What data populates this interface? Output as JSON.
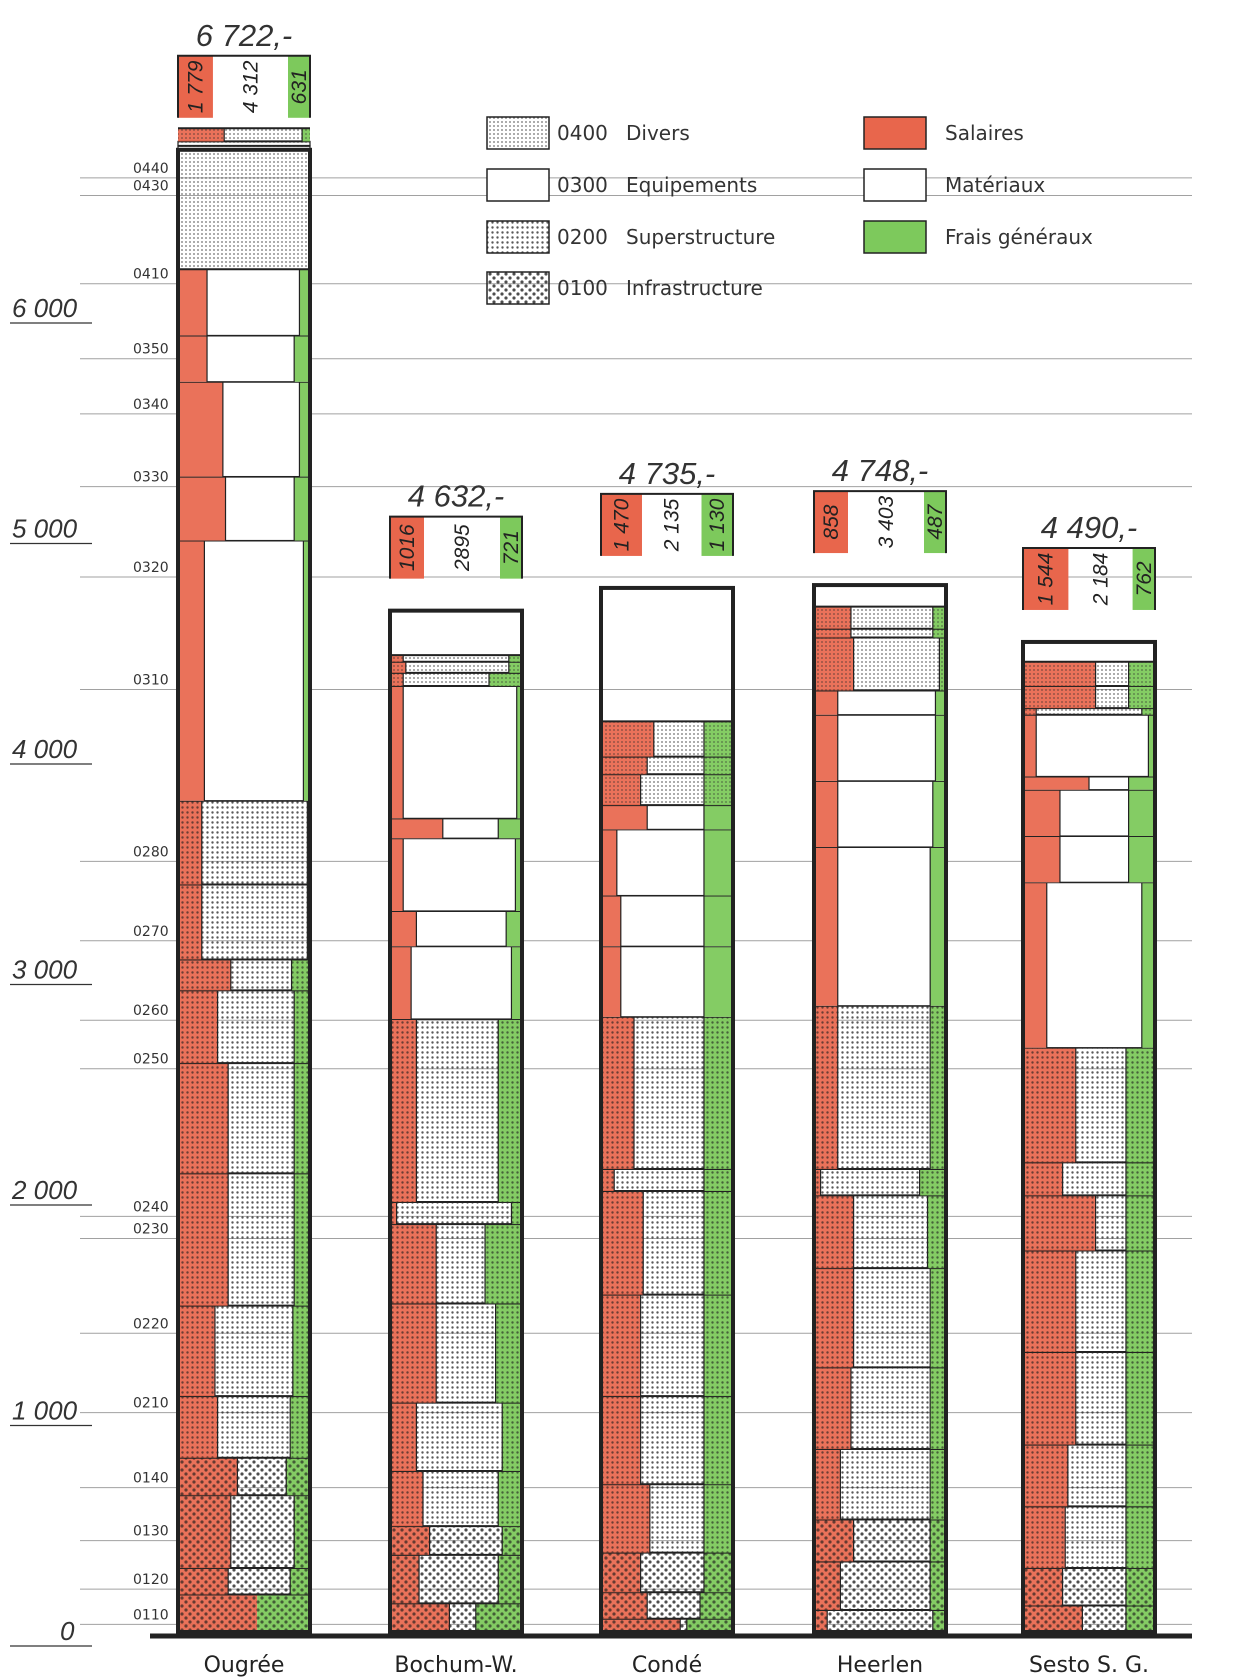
{
  "colors": {
    "salaires": "#e8664c",
    "materiaux": "#ffffff",
    "frais_generaux": "#7dc95c",
    "ink": "#222222"
  },
  "legend": {
    "categories": [
      {
        "code": "0400",
        "label": "Divers",
        "pattern": "dots-fine"
      },
      {
        "code": "0300",
        "label": "Equipements",
        "pattern": "none"
      },
      {
        "code": "0200",
        "label": "Superstructure",
        "pattern": "dots-medium"
      },
      {
        "code": "0100",
        "label": "Infrastructure",
        "pattern": "dots-coarse"
      }
    ],
    "components": [
      {
        "label": "Salaires",
        "color_key": "salaires"
      },
      {
        "label": "Matériaux",
        "color_key": "materiaux"
      },
      {
        "label": "Frais généraux",
        "color_key": "frais_generaux"
      }
    ]
  },
  "chart_data": {
    "type": "bar",
    "stacked": true,
    "ylim": [
      0,
      6722
    ],
    "y_ticks": [
      {
        "value": 0,
        "label": "0"
      },
      {
        "value": 1000,
        "label": "1 000"
      },
      {
        "value": 2000,
        "label": "2 000"
      },
      {
        "value": 3000,
        "label": "3 000"
      },
      {
        "value": 4000,
        "label": "4 000"
      },
      {
        "value": 5000,
        "label": "5 000"
      },
      {
        "value": 6000,
        "label": "6 000"
      }
    ],
    "code_labels": [
      {
        "code": "0110",
        "value": 80
      },
      {
        "code": "0120",
        "value": 240
      },
      {
        "code": "0130",
        "value": 460
      },
      {
        "code": "0140",
        "value": 700
      },
      {
        "code": "0210",
        "value": 1040
      },
      {
        "code": "0220",
        "value": 1400
      },
      {
        "code": "0230",
        "value": 1830
      },
      {
        "code": "0240",
        "value": 1930
      },
      {
        "code": "0250",
        "value": 2600
      },
      {
        "code": "0260",
        "value": 2820
      },
      {
        "code": "0270",
        "value": 3180
      },
      {
        "code": "0280",
        "value": 3540
      },
      {
        "code": "0310",
        "value": 4320
      },
      {
        "code": "0320",
        "value": 4830
      },
      {
        "code": "0330",
        "value": 5240
      },
      {
        "code": "0340",
        "value": 5570
      },
      {
        "code": "0350",
        "value": 5820
      },
      {
        "code": "0410",
        "value": 6160
      },
      {
        "code": "0430",
        "value": 6560
      },
      {
        "code": "0440",
        "value": 6640
      }
    ],
    "series_names": [
      "Salaires",
      "Matériaux",
      "Frais généraux"
    ],
    "bars": [
      {
        "name": "Ougrée",
        "total": 6722,
        "total_label": "6 722,-",
        "split": [
          1779,
          4312,
          631
        ],
        "split_labels": [
          "1 779",
          "4 312",
          "631"
        ],
        "segments": [
          {
            "code": "0110",
            "cat": "0100",
            "height": 170,
            "s": 0.6,
            "f": 0.4
          },
          {
            "code": "0120",
            "cat": "0100",
            "height": 120,
            "s": 0.38,
            "f": 0.15
          },
          {
            "code": "0130",
            "cat": "0100",
            "height": 330,
            "s": 0.4,
            "f": 0.12
          },
          {
            "code": "0140",
            "cat": "0100",
            "height": 170,
            "s": 0.45,
            "f": 0.18
          },
          {
            "code": "0210",
            "cat": "0200",
            "height": 280,
            "s": 0.3,
            "f": 0.15
          },
          {
            "code": "0220",
            "cat": "0200",
            "height": 410,
            "s": 0.28,
            "f": 0.13
          },
          {
            "code": "0230",
            "cat": "0200",
            "height": 600,
            "s": 0.38,
            "f": 0.12
          },
          {
            "code": "0240",
            "cat": "0200",
            "height": 500,
            "s": 0.38,
            "f": 0.12
          },
          {
            "code": "0250",
            "cat": "0200",
            "height": 330,
            "s": 0.3,
            "f": 0.12
          },
          {
            "code": "0260",
            "cat": "0200",
            "height": 140,
            "s": 0.4,
            "f": 0.14
          },
          {
            "code": "0270",
            "cat": "0200",
            "height": 340,
            "s": 0.18,
            "f": 0.02
          },
          {
            "code": "0280",
            "cat": "0200",
            "height": 380,
            "s": 0.18,
            "f": 0.02
          },
          {
            "code": "0310",
            "cat": "0300",
            "height": 1180,
            "s": 0.2,
            "f": 0.05
          },
          {
            "code": "0320",
            "cat": "0300",
            "height": 290,
            "s": 0.36,
            "f": 0.12
          },
          {
            "code": "0330",
            "cat": "0300",
            "height": 430,
            "s": 0.34,
            "f": 0.08
          },
          {
            "code": "0340",
            "cat": "0300",
            "height": 210,
            "s": 0.22,
            "f": 0.12
          },
          {
            "code": "0350",
            "cat": "0300",
            "height": 300,
            "s": 0.22,
            "f": 0.08
          },
          {
            "code": "0410",
            "cat": "0400",
            "height": 560,
            "s": 0.0,
            "f": 0.0
          },
          {
            "code": "0430",
            "cat": "0400",
            "height": 20,
            "s": 0.0,
            "f": 0.0
          },
          {
            "code": "0440",
            "cat": "0400",
            "height": 60,
            "s": 0.35,
            "f": 0.06
          }
        ]
      },
      {
        "name": "Bochum-W.",
        "total": 4632,
        "total_label": "4 632,-",
        "split": [
          1016,
          2895,
          721
        ],
        "split_labels": [
          "1016",
          "2895",
          "721"
        ],
        "segments": [
          {
            "code": "0110",
            "cat": "0100",
            "height": 130,
            "s": 0.45,
            "f": 0.35
          },
          {
            "code": "0120",
            "cat": "0100",
            "height": 220,
            "s": 0.22,
            "f": 0.18
          },
          {
            "code": "0130",
            "cat": "0100",
            "height": 130,
            "s": 0.3,
            "f": 0.15
          },
          {
            "code": "0140",
            "cat": "0200",
            "height": 250,
            "s": 0.25,
            "f": 0.18
          },
          {
            "code": "0210",
            "cat": "0200",
            "height": 310,
            "s": 0.2,
            "f": 0.15
          },
          {
            "code": "0220",
            "cat": "0200",
            "height": 450,
            "s": 0.35,
            "f": 0.2
          },
          {
            "code": "0230",
            "cat": "0200",
            "height": 360,
            "s": 0.35,
            "f": 0.28
          },
          {
            "code": "0240",
            "cat": "0200",
            "height": 100,
            "s": 0.05,
            "f": 0.08
          },
          {
            "code": "0250",
            "cat": "0200",
            "height": 830,
            "s": 0.2,
            "f": 0.18
          },
          {
            "code": "0310",
            "cat": "0300",
            "height": 330,
            "s": 0.16,
            "f": 0.08
          },
          {
            "code": "0320",
            "cat": "0300",
            "height": 160,
            "s": 0.2,
            "f": 0.12
          },
          {
            "code": "0330",
            "cat": "0300",
            "height": 330,
            "s": 0.1,
            "f": 0.05
          },
          {
            "code": "0340",
            "cat": "0300",
            "height": 90,
            "s": 0.4,
            "f": 0.18
          },
          {
            "code": "0350",
            "cat": "0300",
            "height": 600,
            "s": 0.1,
            "f": 0.04
          },
          {
            "code": "0410",
            "cat": "0400",
            "height": 60,
            "s": 0.1,
            "f": 0.25
          },
          {
            "code": "0430",
            "cat": "0400",
            "height": 50,
            "s": 0.12,
            "f": 0.1
          },
          {
            "code": "0440",
            "cat": "0400",
            "height": 30,
            "s": 0.1,
            "f": 0.1
          }
        ]
      },
      {
        "name": "Condé",
        "total": 4735,
        "total_label": "4 735,-",
        "split": [
          1470,
          2135,
          1130
        ],
        "split_labels": [
          "1 470",
          "2 135",
          "1 130"
        ],
        "segments": [
          {
            "code": "0110",
            "cat": "0100",
            "height": 60,
            "s": 0.6,
            "f": 0.35
          },
          {
            "code": "0120",
            "cat": "0100",
            "height": 120,
            "s": 0.35,
            "f": 0.25
          },
          {
            "code": "0130",
            "cat": "0100",
            "height": 180,
            "s": 0.3,
            "f": 0.22
          },
          {
            "code": "0140",
            "cat": "0200",
            "height": 310,
            "s": 0.37,
            "f": 0.22
          },
          {
            "code": "0210",
            "cat": "0200",
            "height": 400,
            "s": 0.3,
            "f": 0.22
          },
          {
            "code": "0220",
            "cat": "0200",
            "height": 460,
            "s": 0.3,
            "f": 0.22
          },
          {
            "code": "0230",
            "cat": "0200",
            "height": 470,
            "s": 0.32,
            "f": 0.22
          },
          {
            "code": "0240",
            "cat": "0200",
            "height": 100,
            "s": 0.1,
            "f": 0.22
          },
          {
            "code": "0250",
            "cat": "0200",
            "height": 690,
            "s": 0.25,
            "f": 0.22
          },
          {
            "code": "0310",
            "cat": "0300",
            "height": 320,
            "s": 0.15,
            "f": 0.22
          },
          {
            "code": "0320",
            "cat": "0300",
            "height": 230,
            "s": 0.15,
            "f": 0.22
          },
          {
            "code": "0330",
            "cat": "0300",
            "height": 300,
            "s": 0.12,
            "f": 0.22
          },
          {
            "code": "0340",
            "cat": "0300",
            "height": 110,
            "s": 0.35,
            "f": 0.22
          },
          {
            "code": "0410",
            "cat": "0400",
            "height": 140,
            "s": 0.3,
            "f": 0.22
          },
          {
            "code": "0430",
            "cat": "0400",
            "height": 80,
            "s": 0.35,
            "f": 0.22
          },
          {
            "code": "0440",
            "cat": "0400",
            "height": 160,
            "s": 0.4,
            "f": 0.22
          }
        ]
      },
      {
        "name": "Heerlen",
        "total": 4748,
        "total_label": "4 748,-",
        "split": [
          858,
          3403,
          487
        ],
        "split_labels": [
          "858",
          "3 403",
          "487"
        ],
        "segments": [
          {
            "code": "0110",
            "cat": "0100",
            "height": 100,
            "s": 0.1,
            "f": 0.1
          },
          {
            "code": "0120",
            "cat": "0100",
            "height": 220,
            "s": 0.2,
            "f": 0.12
          },
          {
            "code": "0130",
            "cat": "0100",
            "height": 190,
            "s": 0.3,
            "f": 0.12
          },
          {
            "code": "0140",
            "cat": "0200",
            "height": 320,
            "s": 0.2,
            "f": 0.12
          },
          {
            "code": "0210",
            "cat": "0200",
            "height": 370,
            "s": 0.28,
            "f": 0.12
          },
          {
            "code": "0220",
            "cat": "0200",
            "height": 450,
            "s": 0.3,
            "f": 0.12
          },
          {
            "code": "0230",
            "cat": "0200",
            "height": 330,
            "s": 0.3,
            "f": 0.14
          },
          {
            "code": "0240",
            "cat": "0200",
            "height": 120,
            "s": 0.05,
            "f": 0.2
          },
          {
            "code": "0250",
            "cat": "0200",
            "height": 740,
            "s": 0.18,
            "f": 0.12
          },
          {
            "code": "0310",
            "cat": "0300",
            "height": 720,
            "s": 0.18,
            "f": 0.12
          },
          {
            "code": "0320",
            "cat": "0300",
            "height": 300,
            "s": 0.18,
            "f": 0.1
          },
          {
            "code": "0330",
            "cat": "0300",
            "height": 300,
            "s": 0.18,
            "f": 0.08
          },
          {
            "code": "0340",
            "cat": "0300",
            "height": 110,
            "s": 0.18,
            "f": 0.08
          },
          {
            "code": "0410",
            "cat": "0400",
            "height": 240,
            "s": 0.3,
            "f": 0.05
          },
          {
            "code": "0430",
            "cat": "0400",
            "height": 40,
            "s": 0.28,
            "f": 0.1
          },
          {
            "code": "0440",
            "cat": "0400",
            "height": 100,
            "s": 0.28,
            "f": 0.1
          }
        ]
      },
      {
        "name": "Sesto S. G.",
        "total": 4490,
        "total_label": "4 490,-",
        "split": [
          1544,
          2184,
          762
        ],
        "split_labels": [
          "1 544",
          "2 184",
          "762"
        ],
        "segments": [
          {
            "code": "0110",
            "cat": "0100",
            "height": 120,
            "s": 0.45,
            "f": 0.22
          },
          {
            "code": "0120",
            "cat": "0100",
            "height": 170,
            "s": 0.3,
            "f": 0.22
          },
          {
            "code": "0130",
            "cat": "0200",
            "height": 280,
            "s": 0.32,
            "f": 0.22
          },
          {
            "code": "0140",
            "cat": "0200",
            "height": 280,
            "s": 0.34,
            "f": 0.22
          },
          {
            "code": "0210",
            "cat": "0200",
            "height": 420,
            "s": 0.4,
            "f": 0.22
          },
          {
            "code": "0220",
            "cat": "0200",
            "height": 460,
            "s": 0.4,
            "f": 0.22
          },
          {
            "code": "0230",
            "cat": "0200",
            "height": 250,
            "s": 0.55,
            "f": 0.22
          },
          {
            "code": "0240",
            "cat": "0200",
            "height": 150,
            "s": 0.3,
            "f": 0.22
          },
          {
            "code": "0250",
            "cat": "0200",
            "height": 520,
            "s": 0.4,
            "f": 0.22
          },
          {
            "code": "0310",
            "cat": "0300",
            "height": 750,
            "s": 0.18,
            "f": 0.1
          },
          {
            "code": "0320",
            "cat": "0300",
            "height": 210,
            "s": 0.28,
            "f": 0.2
          },
          {
            "code": "0330",
            "cat": "0300",
            "height": 210,
            "s": 0.28,
            "f": 0.2
          },
          {
            "code": "0340",
            "cat": "0300",
            "height": 60,
            "s": 0.5,
            "f": 0.2
          },
          {
            "code": "0350",
            "cat": "0300",
            "height": 280,
            "s": 0.1,
            "f": 0.05
          },
          {
            "code": "0410",
            "cat": "0400",
            "height": 30,
            "s": 0.1,
            "f": 0.1
          },
          {
            "code": "0430",
            "cat": "0400",
            "height": 100,
            "s": 0.55,
            "f": 0.2
          },
          {
            "code": "0440",
            "cat": "0400",
            "height": 110,
            "s": 0.55,
            "f": 0.2
          }
        ]
      }
    ]
  }
}
